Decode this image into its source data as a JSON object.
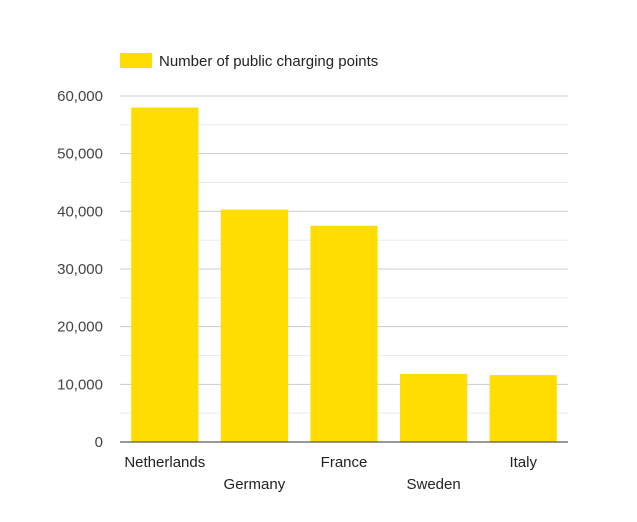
{
  "chart_data": {
    "type": "bar",
    "title": "",
    "xlabel": "",
    "ylabel": "",
    "legend": {
      "label": "Number of public charging points",
      "position": "top-left"
    },
    "series": [
      {
        "name": "Number of public charging points",
        "color": "#FFDD00",
        "values": [
          58000,
          40300,
          37500,
          11800,
          11600
        ]
      }
    ],
    "categories": [
      "Netherlands",
      "Germany",
      "France",
      "Sweden",
      "Italy"
    ],
    "ylim": [
      0,
      60000
    ],
    "yticks": [
      0,
      10000,
      20000,
      30000,
      40000,
      50000,
      60000
    ],
    "ytick_labels": [
      "0",
      "10,000",
      "20,000",
      "30,000",
      "40,000",
      "50,000",
      "60,000"
    ],
    "grid": true
  }
}
